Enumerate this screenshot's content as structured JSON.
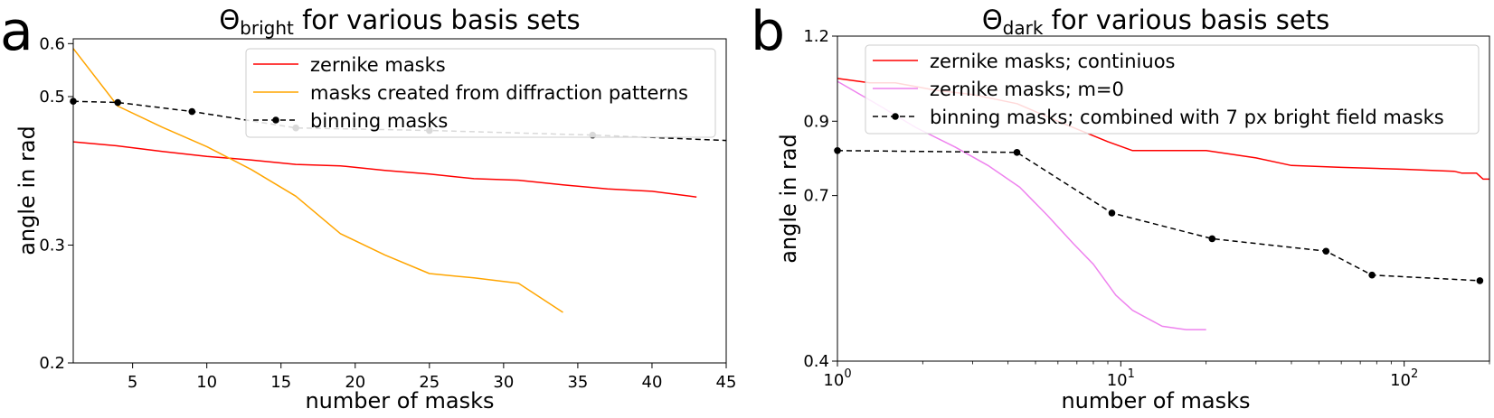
{
  "chart_data": [
    {
      "panel_letter": "a",
      "type": "line",
      "title_symbol": "Θ",
      "title_subscript": "bright",
      "title_rest": " for various basis sets",
      "xlabel": "number of masks",
      "ylabel": "angle in rad",
      "x_scale": "linear",
      "y_scale": "log",
      "xlim": [
        1,
        45
      ],
      "ylim": [
        0.2,
        0.61
      ],
      "x_ticks": [
        5,
        10,
        15,
        20,
        25,
        30,
        35,
        40,
        45
      ],
      "x_tick_labels": [
        "5",
        "10",
        "15",
        "20",
        "25",
        "30",
        "35",
        "40",
        "45"
      ],
      "y_ticks": [
        0.2,
        0.3,
        0.5,
        0.6
      ],
      "y_tick_labels": [
        "0.2",
        "0.3",
        "0.5",
        "0.6"
      ],
      "legend_position": "upper-right",
      "series": [
        {
          "name": "zernike masks",
          "color": "#ff0000",
          "dashed": false,
          "marker": false,
          "x": [
            1,
            4,
            7,
            10,
            13,
            16,
            19,
            22,
            25,
            28,
            31,
            34,
            37,
            40,
            43
          ],
          "y": [
            0.428,
            0.422,
            0.414,
            0.407,
            0.402,
            0.396,
            0.394,
            0.388,
            0.383,
            0.377,
            0.375,
            0.369,
            0.364,
            0.361,
            0.354
          ]
        },
        {
          "name": "masks created from diffraction patterns",
          "color": "#ffa500",
          "dashed": false,
          "marker": false,
          "x": [
            1,
            4,
            7,
            10,
            13,
            16,
            19,
            22,
            25,
            28,
            31,
            34
          ],
          "y": [
            0.59,
            0.484,
            0.45,
            0.421,
            0.389,
            0.355,
            0.312,
            0.29,
            0.272,
            0.268,
            0.263,
            0.238
          ]
        },
        {
          "name": "binning masks",
          "color": "#000000",
          "dashed": true,
          "marker": true,
          "x": [
            1,
            4,
            9,
            16,
            25,
            36,
            45
          ],
          "y": [
            0.492,
            0.49,
            0.475,
            0.449,
            0.445,
            0.438,
            0.43
          ]
        }
      ]
    },
    {
      "panel_letter": "b",
      "type": "line",
      "title_symbol": "Θ",
      "title_subscript": "dark",
      "title_rest": " for various basis sets",
      "xlabel": "number of masks",
      "ylabel": "angle in rad",
      "x_scale": "log",
      "y_scale": "log",
      "xlim": [
        1,
        200
      ],
      "ylim": [
        0.4,
        1.2
      ],
      "x_ticks": [
        1,
        10,
        100
      ],
      "x_tick_labels": [
        {
          "base": "10",
          "exp": "0"
        },
        {
          "base": "10",
          "exp": "1"
        },
        {
          "base": "10",
          "exp": "2"
        }
      ],
      "y_ticks": [
        0.4,
        0.7,
        0.9,
        1.2
      ],
      "y_tick_labels": [
        "0.4",
        "0.7",
        "0.9",
        "1.2"
      ],
      "legend_position": "upper-right",
      "series": [
        {
          "name": "zernike  masks; continiuos",
          "color": "#ff0000",
          "dashed": false,
          "marker": false,
          "x": [
            1,
            1.3,
            1.6,
            2.2,
            3,
            4.3,
            6,
            9,
            11,
            15,
            20,
            30,
            40,
            60,
            100,
            150,
            160,
            180,
            190,
            200
          ],
          "y": [
            1.04,
            1.025,
            1.025,
            1.0,
            0.985,
            0.955,
            0.9,
            0.84,
            0.815,
            0.815,
            0.815,
            0.795,
            0.775,
            0.77,
            0.765,
            0.76,
            0.755,
            0.755,
            0.74,
            0.74
          ]
        },
        {
          "name": "zernike masks; m=0",
          "color": "#ee82ee",
          "dashed": false,
          "marker": false,
          "x": [
            1,
            1.4,
            1.9,
            2.6,
            3.4,
            4.4,
            5.5,
            6.8,
            8,
            9.6,
            11,
            14,
            17,
            20
          ],
          "y": [
            1.03,
            0.95,
            0.88,
            0.825,
            0.775,
            0.72,
            0.655,
            0.595,
            0.555,
            0.5,
            0.475,
            0.45,
            0.445,
            0.445
          ]
        },
        {
          "name": "binning masks; combined with 7 px bright field masks",
          "color": "#000000",
          "dashed": true,
          "marker": true,
          "x": [
            1,
            4.3,
            9.3,
            21,
            53,
            77,
            185
          ],
          "y": [
            0.815,
            0.81,
            0.66,
            0.605,
            0.58,
            0.535,
            0.525
          ]
        }
      ]
    }
  ]
}
